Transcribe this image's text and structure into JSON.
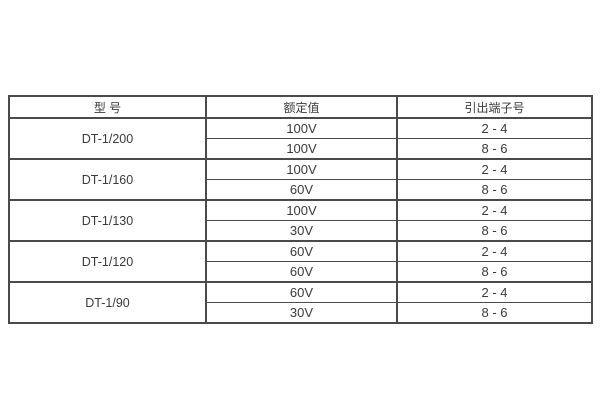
{
  "table": {
    "headers": [
      {
        "label": "型 号"
      },
      {
        "label": "额定值"
      },
      {
        "label": "引出端子号"
      }
    ],
    "groups": [
      {
        "model": "DT-1/200",
        "rows": [
          {
            "rated": "100V",
            "terminals": "2 - 4"
          },
          {
            "rated": "100V",
            "terminals": "8 - 6"
          }
        ]
      },
      {
        "model": "DT-1/160",
        "rows": [
          {
            "rated": "100V",
            "terminals": "2 - 4"
          },
          {
            "rated": "60V",
            "terminals": "8 - 6"
          }
        ]
      },
      {
        "model": "DT-1/130",
        "rows": [
          {
            "rated": "100V",
            "terminals": "2 - 4"
          },
          {
            "rated": "30V",
            "terminals": "8 - 6"
          }
        ]
      },
      {
        "model": "DT-1/120",
        "rows": [
          {
            "rated": "60V",
            "terminals": "2 - 4"
          },
          {
            "rated": "60V",
            "terminals": "8 - 6"
          }
        ]
      },
      {
        "model": "DT-1/90",
        "rows": [
          {
            "rated": "60V",
            "terminals": "2 - 4"
          },
          {
            "rated": "30V",
            "terminals": "8 - 6"
          }
        ]
      }
    ],
    "colors": {
      "border": "#4a4a4a",
      "text": "#3a3a3a",
      "background": "#ffffff"
    }
  }
}
